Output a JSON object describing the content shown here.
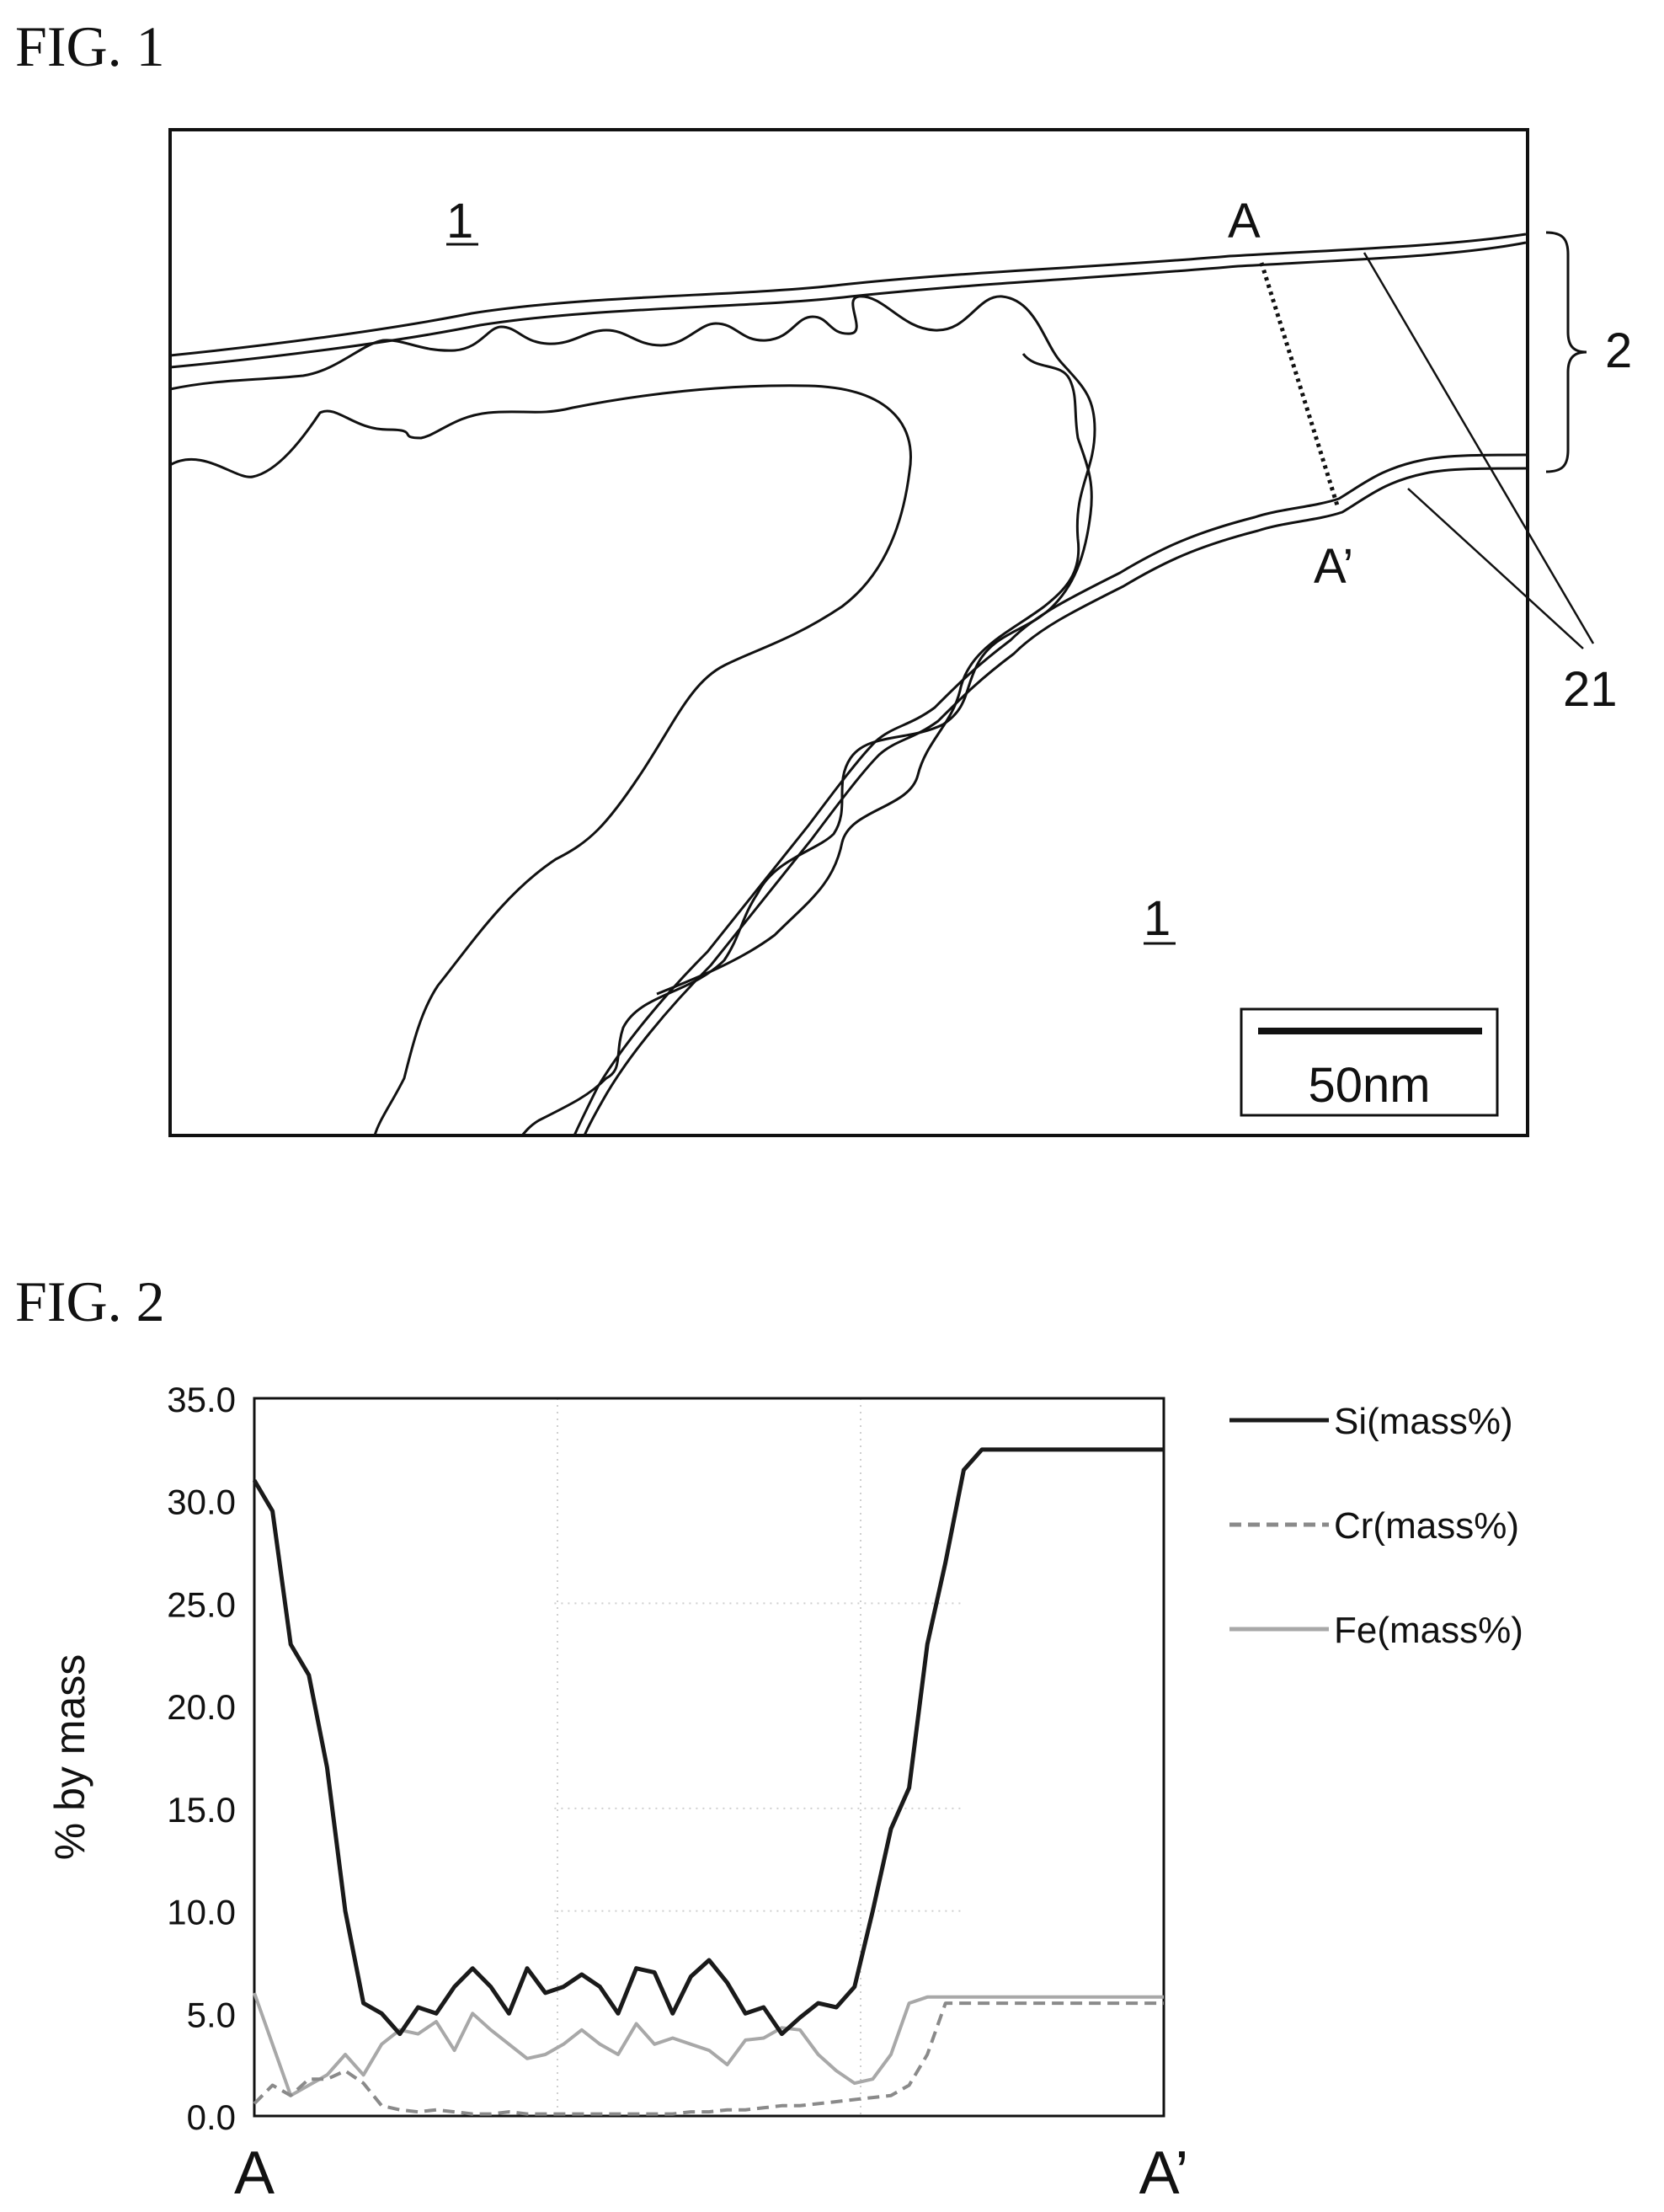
{
  "fig1": {
    "title": "FIG. 1",
    "labels": {
      "region_top": "1",
      "region_bottom": "1",
      "point_a": "A",
      "point_a_prime": "A’",
      "layer": "2",
      "film": "21"
    },
    "scale_bar": "50nm"
  },
  "fig2": {
    "title": "FIG. 2"
  },
  "chart_data": {
    "type": "line",
    "title": "",
    "ylabel": "% by mass",
    "xlabel": "",
    "ylim": [
      0,
      35
    ],
    "y_ticks": [
      "0.0",
      "5.0",
      "10.0",
      "15.0",
      "20.0",
      "25.0",
      "30.0",
      "35.0"
    ],
    "x_tick_labels": [
      "A",
      "A’"
    ],
    "x": [
      0,
      2,
      4,
      6,
      8,
      10,
      12,
      14,
      16,
      18,
      20,
      22,
      24,
      26,
      28,
      30,
      32,
      34,
      36,
      38,
      40,
      42,
      44,
      46,
      48,
      50,
      52,
      54,
      56,
      58,
      60,
      62,
      64,
      66,
      68,
      70,
      72,
      74,
      76,
      78,
      80,
      82,
      84,
      86,
      88,
      90,
      92,
      94,
      96,
      98,
      100
    ],
    "legend_position": "right",
    "series": [
      {
        "name": "Si(mass%)",
        "color": "#1a1a1a",
        "style": "solid",
        "values": [
          31.0,
          29.5,
          23.0,
          21.5,
          17.0,
          10.0,
          5.5,
          5.0,
          4.0,
          5.3,
          5.0,
          6.3,
          7.2,
          6.3,
          5.0,
          7.2,
          6.0,
          6.3,
          6.9,
          6.3,
          5.0,
          7.2,
          7.0,
          5.0,
          6.8,
          7.6,
          6.5,
          5.0,
          5.3,
          4.0,
          4.8,
          5.5,
          5.3,
          6.3,
          10.0,
          14.0,
          16.0,
          23.0,
          27.0,
          31.5,
          32.5,
          32.5,
          32.5,
          32.5,
          32.5,
          32.5,
          32.5,
          32.5,
          32.5,
          32.5,
          32.5
        ]
      },
      {
        "name": "Cr(mass%)",
        "color": "#8a8a8a",
        "style": "dashed",
        "values": [
          0.6,
          1.5,
          1.0,
          1.8,
          1.8,
          2.2,
          1.6,
          0.5,
          0.3,
          0.2,
          0.3,
          0.2,
          0.1,
          0.1,
          0.2,
          0.1,
          0.1,
          0.1,
          0.1,
          0.1,
          0.1,
          0.1,
          0.1,
          0.1,
          0.2,
          0.2,
          0.3,
          0.3,
          0.4,
          0.5,
          0.5,
          0.6,
          0.7,
          0.8,
          0.9,
          1.0,
          1.5,
          3.0,
          5.5,
          5.5,
          5.5,
          5.5,
          5.5,
          5.5,
          5.5,
          5.5,
          5.5,
          5.5,
          5.5,
          5.5,
          5.5
        ]
      },
      {
        "name": "Fe(mass%)",
        "color": "#a8a8a8",
        "style": "solid",
        "values": [
          6.0,
          3.5,
          1.0,
          1.5,
          2.0,
          3.0,
          2.0,
          3.5,
          4.2,
          4.0,
          4.6,
          3.2,
          5.0,
          4.2,
          3.5,
          2.8,
          3.0,
          3.5,
          4.2,
          3.5,
          3.0,
          4.5,
          3.5,
          3.8,
          3.5,
          3.2,
          2.5,
          3.7,
          3.8,
          4.3,
          4.2,
          3.0,
          2.2,
          1.6,
          1.8,
          3.0,
          5.5,
          5.8,
          5.8,
          5.8,
          5.8,
          5.8,
          5.8,
          5.8,
          5.8,
          5.8,
          5.8,
          5.8,
          5.8,
          5.8,
          5.8
        ]
      }
    ]
  }
}
